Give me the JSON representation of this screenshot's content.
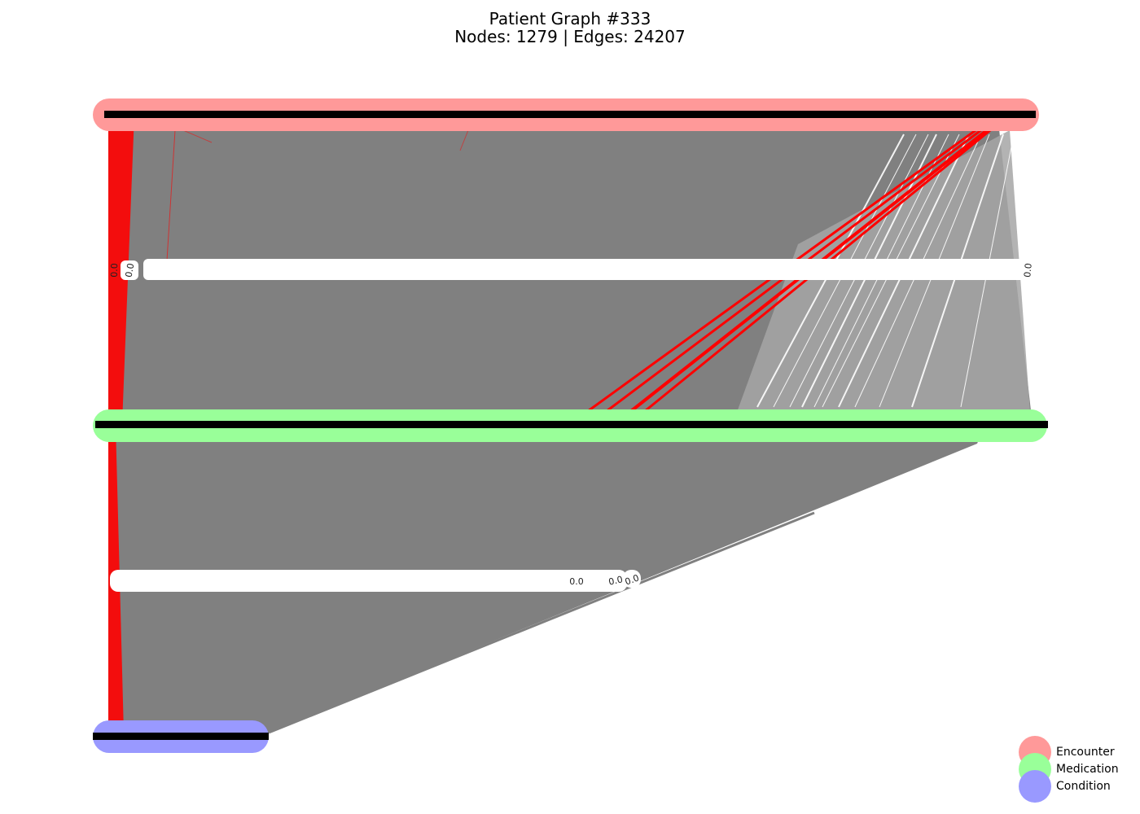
{
  "title_line1": "Patient Graph #333",
  "title_line2": "Nodes: 1279 | Edges: 24207",
  "colors": {
    "encounter": "#ff9999",
    "medication": "#99ff99",
    "condition": "#9999ff",
    "edge_default": "#808080",
    "edge_light": "#a6a6a6",
    "edge_highlight": "#ff0000",
    "node_border": "#000000"
  },
  "node_groups": [
    {
      "name": "Encounter"
    },
    {
      "name": "Medication"
    },
    {
      "name": "Condition"
    }
  ],
  "edge_labels": {
    "value": "0.0"
  },
  "legend": [
    {
      "label": "Encounter",
      "color": "#ff9999"
    },
    {
      "label": "Medication",
      "color": "#99ff99"
    },
    {
      "label": "Condition",
      "color": "#9999ff"
    }
  ]
}
